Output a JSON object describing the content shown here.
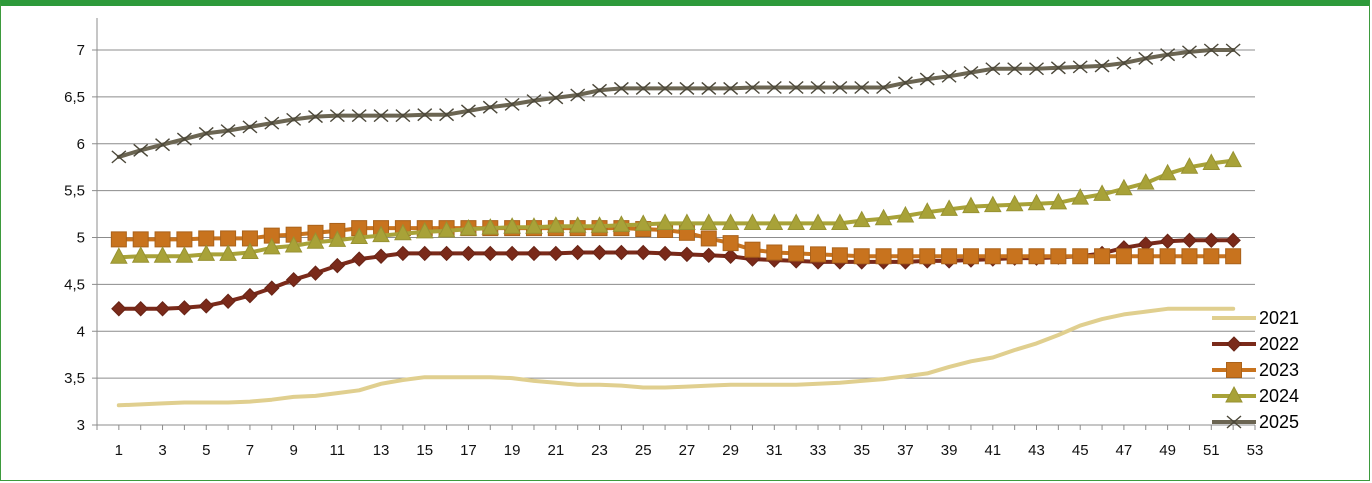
{
  "chart_data": {
    "type": "line",
    "title": "",
    "xlabel": "",
    "ylabel": "",
    "x": [
      1,
      2,
      3,
      4,
      5,
      6,
      7,
      8,
      9,
      10,
      11,
      12,
      13,
      14,
      15,
      16,
      17,
      18,
      19,
      20,
      21,
      22,
      23,
      24,
      25,
      26,
      27,
      28,
      29,
      30,
      31,
      32,
      33,
      34,
      35,
      36,
      37,
      38,
      39,
      40,
      41,
      42,
      43,
      44,
      45,
      46,
      47,
      48,
      49,
      50,
      51,
      52
    ],
    "xlim": [
      0,
      53
    ],
    "x_tick_labels": [
      "1",
      "3",
      "5",
      "7",
      "9",
      "11",
      "13",
      "15",
      "17",
      "19",
      "21",
      "23",
      "25",
      "27",
      "29",
      "31",
      "33",
      "35",
      "37",
      "39",
      "41",
      "43",
      "45",
      "47",
      "49",
      "51",
      "53"
    ],
    "ylim": [
      3,
      7
    ],
    "y_tick_labels": [
      "3",
      "3,5",
      "4",
      "4,5",
      "5",
      "5,5",
      "6",
      "6,5",
      "7"
    ],
    "grid": "horizontal",
    "legend_position": "right",
    "series": [
      {
        "name": "2021",
        "color": "#e0cf8f",
        "marker": "none",
        "values": [
          3.21,
          3.22,
          3.23,
          3.24,
          3.24,
          3.24,
          3.25,
          3.27,
          3.3,
          3.31,
          3.34,
          3.37,
          3.44,
          3.48,
          3.51,
          3.51,
          3.51,
          3.51,
          3.5,
          3.47,
          3.45,
          3.43,
          3.43,
          3.42,
          3.4,
          3.4,
          3.41,
          3.42,
          3.43,
          3.43,
          3.43,
          3.43,
          3.44,
          3.45,
          3.47,
          3.49,
          3.52,
          3.55,
          3.62,
          3.68,
          3.72,
          3.8,
          3.87,
          3.96,
          4.06,
          4.13,
          4.18,
          4.21,
          4.24,
          4.24,
          4.24,
          4.24
        ]
      },
      {
        "name": "2022",
        "color": "#7a2a1a",
        "marker": "diamond",
        "values": [
          4.24,
          4.24,
          4.24,
          4.25,
          4.27,
          4.32,
          4.38,
          4.46,
          4.55,
          4.62,
          4.7,
          4.77,
          4.8,
          4.83,
          4.83,
          4.83,
          4.83,
          4.83,
          4.83,
          4.83,
          4.83,
          4.84,
          4.84,
          4.84,
          4.84,
          4.83,
          4.82,
          4.81,
          4.8,
          4.77,
          4.76,
          4.75,
          4.74,
          4.74,
          4.74,
          4.74,
          4.74,
          4.75,
          4.75,
          4.76,
          4.77,
          4.78,
          4.78,
          4.79,
          4.8,
          4.83,
          4.89,
          4.93,
          4.96,
          4.97,
          4.97,
          4.97
        ]
      },
      {
        "name": "2023",
        "color": "#c8731e",
        "marker": "square",
        "values": [
          4.98,
          4.98,
          4.98,
          4.98,
          4.99,
          4.99,
          4.99,
          5.02,
          5.03,
          5.05,
          5.07,
          5.1,
          5.1,
          5.1,
          5.1,
          5.1,
          5.1,
          5.1,
          5.1,
          5.1,
          5.1,
          5.1,
          5.1,
          5.1,
          5.09,
          5.08,
          5.05,
          4.99,
          4.94,
          4.87,
          4.84,
          4.83,
          4.82,
          4.81,
          4.8,
          4.8,
          4.8,
          4.8,
          4.8,
          4.8,
          4.8,
          4.8,
          4.8,
          4.8,
          4.8,
          4.8,
          4.8,
          4.8,
          4.8,
          4.8,
          4.8,
          4.8
        ]
      },
      {
        "name": "2024",
        "color": "#a8a238",
        "marker": "triangle",
        "values": [
          4.79,
          4.8,
          4.8,
          4.8,
          4.82,
          4.82,
          4.84,
          4.89,
          4.91,
          4.95,
          4.97,
          5.0,
          5.02,
          5.04,
          5.06,
          5.07,
          5.09,
          5.1,
          5.11,
          5.11,
          5.12,
          5.12,
          5.12,
          5.13,
          5.14,
          5.15,
          5.15,
          5.15,
          5.15,
          5.15,
          5.15,
          5.15,
          5.15,
          5.15,
          5.18,
          5.2,
          5.23,
          5.27,
          5.3,
          5.33,
          5.34,
          5.35,
          5.36,
          5.37,
          5.42,
          5.46,
          5.52,
          5.58,
          5.68,
          5.75,
          5.79,
          5.82
        ]
      },
      {
        "name": "2025",
        "color": "#6b6552",
        "marker": "x",
        "values": [
          5.86,
          5.93,
          5.99,
          6.05,
          6.11,
          6.14,
          6.18,
          6.22,
          6.26,
          6.29,
          6.3,
          6.3,
          6.3,
          6.3,
          6.31,
          6.31,
          6.35,
          6.39,
          6.42,
          6.46,
          6.49,
          6.52,
          6.57,
          6.59,
          6.59,
          6.59,
          6.59,
          6.59,
          6.59,
          6.6,
          6.6,
          6.6,
          6.6,
          6.6,
          6.6,
          6.6,
          6.65,
          6.69,
          6.72,
          6.76,
          6.8,
          6.8,
          6.8,
          6.81,
          6.82,
          6.83,
          6.86,
          6.91,
          6.95,
          6.98,
          7.0,
          7.0
        ]
      }
    ]
  }
}
